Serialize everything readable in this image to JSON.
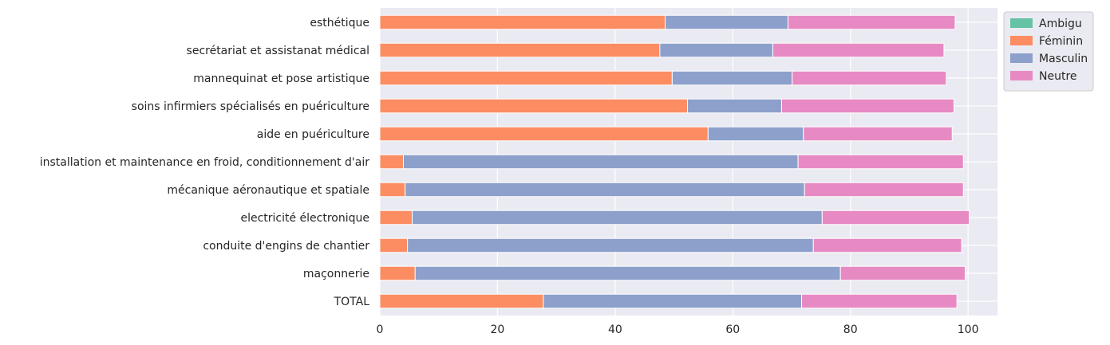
{
  "chart_data": {
    "type": "bar",
    "orientation": "horizontal",
    "stacked": true,
    "title": "",
    "xlabel": "",
    "ylabel": "",
    "xlim": [
      0,
      105
    ],
    "xticks": [
      0,
      20,
      40,
      60,
      80,
      100
    ],
    "grid": true,
    "legend_position": "top-right",
    "categories": [
      "esthétique",
      "secrétariat et assistanat médical",
      "mannequinat et pose artistique",
      "soins infirmiers spécialisés en puériculture",
      "aide en puériculture",
      "installation et maintenance en froid, conditionnement d'air",
      "mécanique aéronautique et spatiale",
      "electricité électronique",
      "conduite d'engins de chantier",
      "maçonnerie",
      "TOTAL"
    ],
    "series": [
      {
        "name": "Ambigu",
        "color": "#66c2a5",
        "values": [
          0,
          0,
          0,
          0,
          0,
          0,
          0,
          0,
          0,
          0,
          0
        ]
      },
      {
        "name": "Féminin",
        "color": "#fc8d62",
        "values": [
          48.5,
          47.6,
          49.7,
          52.3,
          55.8,
          4.0,
          4.3,
          5.5,
          4.7,
          6.0,
          27.8
        ]
      },
      {
        "name": "Masculin",
        "color": "#8da0cb",
        "values": [
          20.9,
          19.2,
          20.4,
          16.0,
          16.2,
          67.1,
          67.9,
          69.7,
          69.0,
          72.3,
          43.9
        ]
      },
      {
        "name": "Neutre",
        "color": "#e78ac3",
        "values": [
          28.4,
          29.1,
          26.2,
          29.3,
          25.3,
          28.1,
          27.0,
          25.0,
          25.2,
          21.2,
          26.4
        ]
      }
    ]
  }
}
